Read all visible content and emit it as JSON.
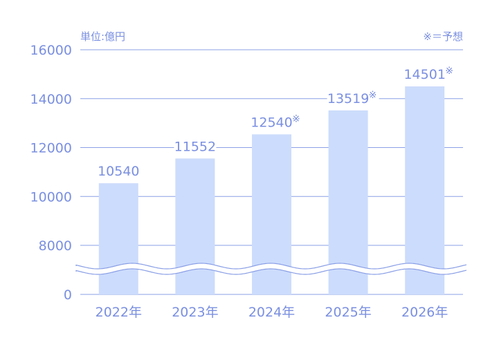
{
  "chart_data": {
    "type": "bar",
    "unit_label": "単位:億円",
    "note_label": "※＝予想",
    "categories": [
      "2022年",
      "2023年",
      "2024年",
      "2025年",
      "2026年"
    ],
    "values": [
      10540,
      11552,
      12540,
      13519,
      14501
    ],
    "value_labels": [
      "10540",
      "11552",
      "12540",
      "13519",
      "14501"
    ],
    "forecast_flags": [
      false,
      false,
      true,
      true,
      true
    ],
    "forecast_mark": "※",
    "y_ticks": [
      {
        "label": "16000",
        "value": 16000
      },
      {
        "label": "14000",
        "value": 14000
      },
      {
        "label": "12000",
        "value": 12000
      },
      {
        "label": "10000",
        "value": 10000
      },
      {
        "label": "8000",
        "value": 8000
      },
      {
        "label": "0",
        "value": 0
      }
    ],
    "axis_break": {
      "between": [
        0,
        8000
      ]
    },
    "grid": true,
    "colors": {
      "bar": "#ccdcfc",
      "text": "#7a8fe0",
      "grid": "#8a9fe6"
    }
  }
}
